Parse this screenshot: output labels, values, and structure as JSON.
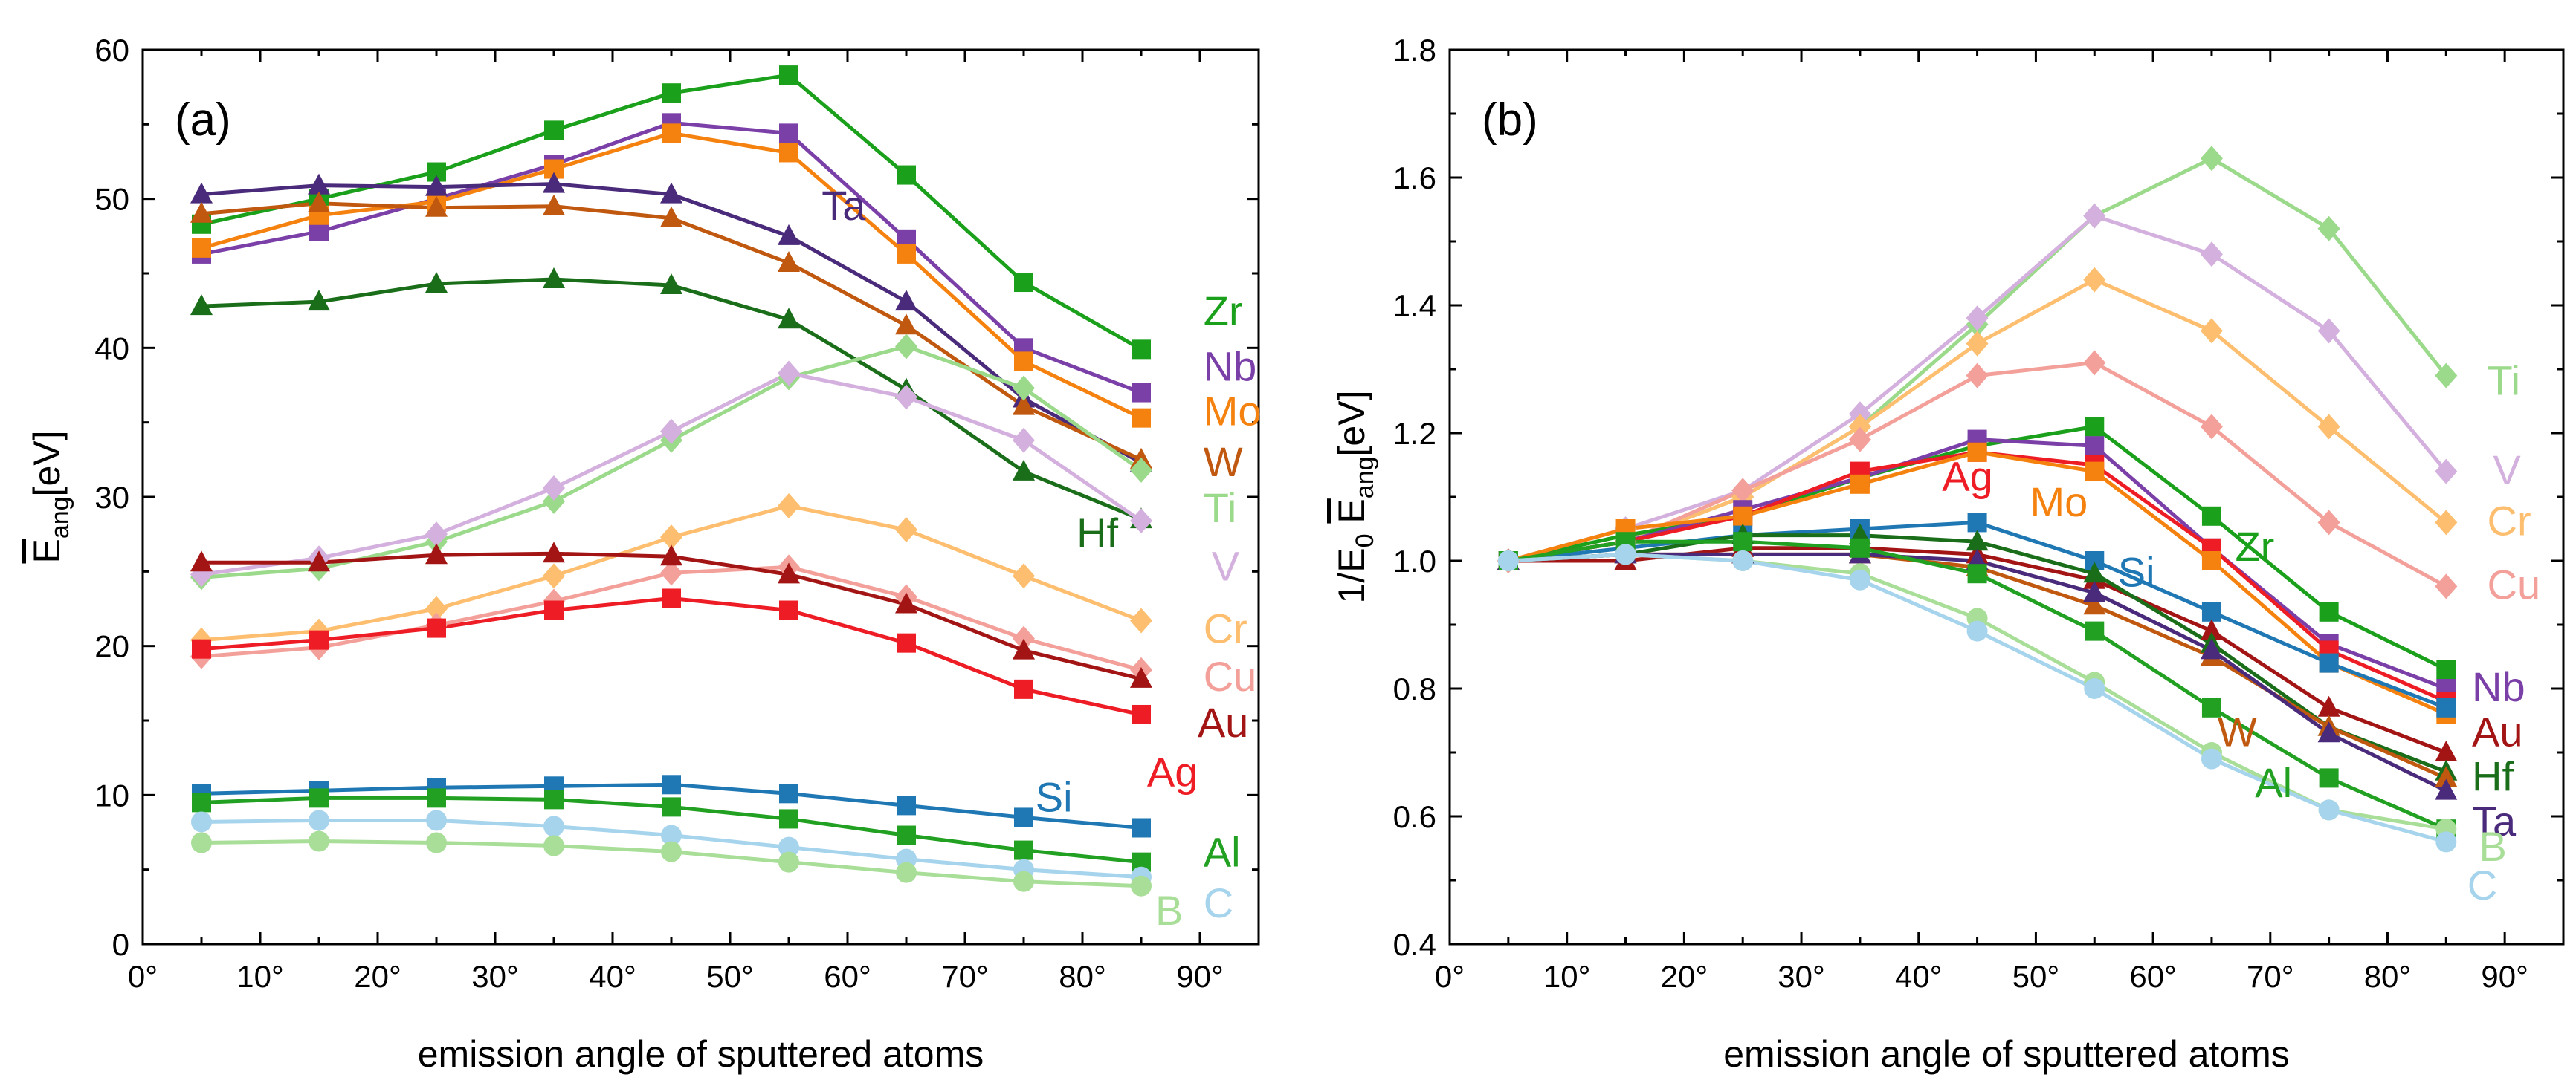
{
  "chart_data": [
    {
      "type": "line",
      "panel_label": "(a)",
      "ylabel_main": "E",
      "ylabel_sub": "ang",
      "ylabel_unit": "[eV]",
      "xlabel": "emission angle of sputtered atoms",
      "xlim": [
        0,
        95
      ],
      "ylim": [
        0,
        60
      ],
      "xticks": [
        0,
        10,
        20,
        30,
        40,
        50,
        60,
        70,
        80,
        90
      ],
      "xtick_labels": [
        "0°",
        "10°",
        "20°",
        "30°",
        "40°",
        "50°",
        "60°",
        "70°",
        "80°",
        "90°"
      ],
      "yticks": [
        0,
        10,
        20,
        30,
        40,
        50,
        60
      ],
      "ytick_labels": [
        "0",
        "10",
        "20",
        "30",
        "40",
        "50",
        "60"
      ],
      "x": [
        5,
        15,
        25,
        35,
        45,
        55,
        65,
        75,
        85
      ],
      "series": [
        {
          "name": "Zr",
          "color": "#1aa01a",
          "marker": "square",
          "values": [
            48.3,
            50.0,
            51.8,
            54.6,
            57.1,
            58.3,
            51.6,
            44.4,
            39.9
          ]
        },
        {
          "name": "Nb",
          "color": "#7b3fa8",
          "marker": "square",
          "values": [
            46.3,
            47.8,
            50.0,
            52.3,
            55.1,
            54.4,
            47.3,
            40.0,
            37.0
          ]
        },
        {
          "name": "Mo",
          "color": "#f5820f",
          "marker": "square",
          "values": [
            46.7,
            48.9,
            49.8,
            52.0,
            54.4,
            53.1,
            46.3,
            39.1,
            35.3
          ]
        },
        {
          "name": "Ta",
          "color": "#4a2a7a",
          "marker": "triangle",
          "values": [
            50.3,
            50.9,
            50.8,
            51.0,
            50.3,
            47.5,
            43.1,
            36.6,
            32.3
          ]
        },
        {
          "name": "W",
          "color": "#c0580f",
          "marker": "triangle",
          "values": [
            49.0,
            49.7,
            49.4,
            49.5,
            48.7,
            45.7,
            41.5,
            36.1,
            32.5
          ]
        },
        {
          "name": "Hf",
          "color": "#1a6e1a",
          "marker": "triangle",
          "values": [
            42.8,
            43.1,
            44.3,
            44.6,
            44.2,
            41.9,
            37.2,
            31.7,
            28.5
          ]
        },
        {
          "name": "Ti",
          "color": "#9bd98b",
          "marker": "diamond",
          "values": [
            24.6,
            25.2,
            27.0,
            29.7,
            33.8,
            38.0,
            40.1,
            37.3,
            31.8
          ]
        },
        {
          "name": "V",
          "color": "#d4b0de",
          "marker": "diamond",
          "values": [
            24.8,
            25.9,
            27.5,
            30.6,
            34.4,
            38.3,
            36.7,
            33.8,
            28.4
          ]
        },
        {
          "name": "Cr",
          "color": "#fdbf6f",
          "marker": "diamond",
          "values": [
            20.4,
            21.0,
            22.5,
            24.7,
            27.3,
            29.4,
            27.8,
            24.7,
            21.7
          ]
        },
        {
          "name": "Cu",
          "color": "#f4a09a",
          "marker": "diamond",
          "values": [
            19.3,
            19.9,
            21.4,
            23.0,
            24.9,
            25.3,
            23.3,
            20.5,
            18.4
          ]
        },
        {
          "name": "Au",
          "color": "#a31515",
          "marker": "triangle",
          "values": [
            25.6,
            25.6,
            26.1,
            26.2,
            26.0,
            24.8,
            22.8,
            19.7,
            17.8
          ]
        },
        {
          "name": "Ag",
          "color": "#ee1c25",
          "marker": "square",
          "values": [
            19.8,
            20.4,
            21.2,
            22.4,
            23.2,
            22.4,
            20.2,
            17.1,
            15.4
          ]
        },
        {
          "name": "Si",
          "color": "#1f78b4",
          "marker": "square",
          "values": [
            10.1,
            10.3,
            10.5,
            10.6,
            10.7,
            10.1,
            9.3,
            8.5,
            7.8
          ]
        },
        {
          "name": "Al",
          "color": "#22a022",
          "marker": "square",
          "values": [
            9.5,
            9.8,
            9.8,
            9.7,
            9.2,
            8.4,
            7.3,
            6.3,
            5.5
          ]
        },
        {
          "name": "C",
          "color": "#a6d4ec",
          "marker": "circle",
          "values": [
            8.2,
            8.3,
            8.3,
            7.9,
            7.3,
            6.5,
            5.7,
            5.0,
            4.5
          ]
        },
        {
          "name": "B",
          "color": "#a8de98",
          "marker": "circle",
          "values": [
            6.8,
            6.9,
            6.8,
            6.6,
            6.2,
            5.5,
            4.8,
            4.2,
            3.9
          ]
        }
      ],
      "labels": [
        {
          "text": "Zr",
          "series": "Zr",
          "x": 90.3,
          "y": 41.5,
          "size": "lg"
        },
        {
          "text": "Nb",
          "series": "Nb",
          "x": 90.3,
          "y": 37.8,
          "size": "lg"
        },
        {
          "text": "Mo",
          "series": "Mo",
          "x": 90.3,
          "y": 34.8,
          "size": "lg"
        },
        {
          "text": "W",
          "series": "W",
          "x": 90.3,
          "y": 31.4,
          "size": "lg"
        },
        {
          "text": "Ti",
          "series": "Ti",
          "x": 90.3,
          "y": 28.3,
          "size": "lg"
        },
        {
          "text": "V",
          "series": "V",
          "x": 91.0,
          "y": 24.4,
          "size": "lg"
        },
        {
          "text": "Cr",
          "series": "Cr",
          "x": 90.3,
          "y": 20.2,
          "size": "lg"
        },
        {
          "text": "Cu",
          "series": "Cu",
          "x": 90.3,
          "y": 17.0,
          "size": "lg"
        },
        {
          "text": "Au",
          "series": "Au",
          "x": 89.8,
          "y": 13.9,
          "size": "lg"
        },
        {
          "text": "Ag",
          "series": "Ag",
          "x": 85.5,
          "y": 10.6,
          "size": "lg"
        },
        {
          "text": "Si",
          "series": "Si",
          "x": 76.0,
          "y": 8.9,
          "size": "lg"
        },
        {
          "text": "Al",
          "series": "Al",
          "x": 90.3,
          "y": 5.2,
          "size": "lg"
        },
        {
          "text": "B",
          "series": "B",
          "x": 86.2,
          "y": 1.3,
          "size": "lg"
        },
        {
          "text": "C",
          "series": "C",
          "x": 90.3,
          "y": 1.8,
          "size": "lg"
        },
        {
          "text": "Ta",
          "series": "Ta",
          "x": 57.8,
          "y": 48.6,
          "size": "lg"
        },
        {
          "text": "Hf",
          "series": "Hf",
          "x": 79.5,
          "y": 26.6,
          "size": "lg"
        }
      ]
    },
    {
      "type": "line",
      "panel_label": "(b)",
      "ylabel_prefix": "1/E",
      "ylabel_prefix_sub": "0",
      "ylabel_main": "E",
      "ylabel_sub": "ang",
      "ylabel_unit": "[eV]",
      "xlabel": "emission angle of sputtered atoms",
      "xlim": [
        0,
        95
      ],
      "ylim": [
        0.4,
        1.8
      ],
      "xticks": [
        0,
        10,
        20,
        30,
        40,
        50,
        60,
        70,
        80,
        90
      ],
      "xtick_labels": [
        "0°",
        "10°",
        "20°",
        "30°",
        "40°",
        "50°",
        "60°",
        "70°",
        "80°",
        "90°"
      ],
      "yticks": [
        0.4,
        0.6,
        0.8,
        1.0,
        1.2,
        1.4,
        1.6,
        1.8
      ],
      "ytick_labels": [
        "0.4",
        "0.6",
        "0.8",
        "1.0",
        "1.2",
        "1.4",
        "1.6",
        "1.8"
      ],
      "x": [
        5,
        15,
        25,
        35,
        45,
        55,
        65,
        75,
        85
      ],
      "series": [
        {
          "name": "Ti",
          "color": "#9bd98b",
          "marker": "diamond",
          "values": [
            1.0,
            1.03,
            1.1,
            1.21,
            1.37,
            1.54,
            1.63,
            1.52,
            1.29
          ]
        },
        {
          "name": "V",
          "color": "#d4b0de",
          "marker": "diamond",
          "values": [
            1.0,
            1.05,
            1.11,
            1.23,
            1.38,
            1.54,
            1.48,
            1.36,
            1.14
          ]
        },
        {
          "name": "Cr",
          "color": "#fdbf6f",
          "marker": "diamond",
          "values": [
            1.0,
            1.03,
            1.1,
            1.21,
            1.34,
            1.44,
            1.36,
            1.21,
            1.06
          ]
        },
        {
          "name": "Cu",
          "color": "#f4a09a",
          "marker": "diamond",
          "values": [
            1.0,
            1.03,
            1.11,
            1.19,
            1.29,
            1.31,
            1.21,
            1.06,
            0.96
          ]
        },
        {
          "name": "Zr",
          "color": "#1aa01a",
          "marker": "square",
          "values": [
            1.0,
            1.04,
            1.07,
            1.13,
            1.18,
            1.21,
            1.07,
            0.92,
            0.83
          ]
        },
        {
          "name": "Nb",
          "color": "#7b3fa8",
          "marker": "square",
          "values": [
            1.0,
            1.03,
            1.08,
            1.13,
            1.19,
            1.18,
            1.02,
            0.87,
            0.8
          ]
        },
        {
          "name": "Ag",
          "color": "#ee1c25",
          "marker": "square",
          "values": [
            1.0,
            1.03,
            1.07,
            1.14,
            1.17,
            1.15,
            1.02,
            0.86,
            0.78
          ]
        },
        {
          "name": "Mo",
          "color": "#f5820f",
          "marker": "square",
          "values": [
            1.0,
            1.05,
            1.07,
            1.12,
            1.17,
            1.14,
            1.0,
            0.84,
            0.76
          ]
        },
        {
          "name": "Si",
          "color": "#1f78b4",
          "marker": "square",
          "values": [
            1.0,
            1.02,
            1.04,
            1.05,
            1.06,
            1.0,
            0.92,
            0.84,
            0.77
          ]
        },
        {
          "name": "Au",
          "color": "#a31515",
          "marker": "triangle",
          "values": [
            1.0,
            1.0,
            1.02,
            1.02,
            1.01,
            0.97,
            0.89,
            0.77,
            0.7
          ]
        },
        {
          "name": "Hf",
          "color": "#1a6e1a",
          "marker": "triangle",
          "values": [
            1.0,
            1.01,
            1.04,
            1.04,
            1.03,
            0.98,
            0.87,
            0.74,
            0.67
          ]
        },
        {
          "name": "W",
          "color": "#c0580f",
          "marker": "triangle",
          "values": [
            1.0,
            1.01,
            1.01,
            1.01,
            0.99,
            0.93,
            0.85,
            0.74,
            0.66
          ]
        },
        {
          "name": "Ta",
          "color": "#4a2a7a",
          "marker": "triangle",
          "values": [
            1.0,
            1.01,
            1.01,
            1.01,
            1.0,
            0.95,
            0.86,
            0.73,
            0.64
          ]
        },
        {
          "name": "Al",
          "color": "#22a022",
          "marker": "square",
          "values": [
            1.0,
            1.03,
            1.03,
            1.02,
            0.98,
            0.89,
            0.77,
            0.66,
            0.58
          ]
        },
        {
          "name": "B",
          "color": "#a8de98",
          "marker": "circle",
          "values": [
            1.0,
            1.01,
            1.0,
            0.98,
            0.91,
            0.81,
            0.7,
            0.61,
            0.58
          ]
        },
        {
          "name": "C",
          "color": "#a6d4ec",
          "marker": "circle",
          "values": [
            1.0,
            1.01,
            1.0,
            0.97,
            0.89,
            0.8,
            0.69,
            0.61,
            0.56
          ]
        }
      ],
      "labels": [
        {
          "text": "Ti",
          "series": "Ti",
          "x": 88.5,
          "y": 1.26,
          "size": "lg"
        },
        {
          "text": "V",
          "series": "V",
          "x": 89.0,
          "y": 1.12,
          "size": "lg"
        },
        {
          "text": "Cr",
          "series": "Cr",
          "x": 88.5,
          "y": 1.04,
          "size": "lg"
        },
        {
          "text": "Cu",
          "series": "Cu",
          "x": 88.5,
          "y": 0.94,
          "size": "lg"
        },
        {
          "text": "Zr",
          "series": "Zr",
          "x": 67.0,
          "y": 1.0,
          "size": "lg"
        },
        {
          "text": "Ag",
          "series": "Ag",
          "x": 42.0,
          "y": 1.11,
          "size": "lg"
        },
        {
          "text": "Mo",
          "series": "Mo",
          "x": 49.5,
          "y": 1.07,
          "size": "lg"
        },
        {
          "text": "Si",
          "series": "Si",
          "x": 57.0,
          "y": 0.96,
          "size": "lg"
        },
        {
          "text": "Nb",
          "series": "Nb",
          "x": 87.2,
          "y": 0.78,
          "size": "lg"
        },
        {
          "text": "Au",
          "series": "Au",
          "x": 87.2,
          "y": 0.71,
          "size": "lg"
        },
        {
          "text": "W",
          "series": "W",
          "x": 65.5,
          "y": 0.71,
          "size": "lg"
        },
        {
          "text": "Hf",
          "series": "Hf",
          "x": 87.2,
          "y": 0.64,
          "size": "lg"
        },
        {
          "text": "Al",
          "series": "Al",
          "x": 68.7,
          "y": 0.63,
          "size": "lg"
        },
        {
          "text": "Ta",
          "series": "Ta",
          "x": 87.2,
          "y": 0.57,
          "size": "lg"
        },
        {
          "text": "B",
          "series": "B",
          "x": 87.8,
          "y": 0.53,
          "size": "lg"
        },
        {
          "text": "C",
          "series": "C",
          "x": 86.8,
          "y": 0.47,
          "size": "lg"
        }
      ]
    }
  ]
}
